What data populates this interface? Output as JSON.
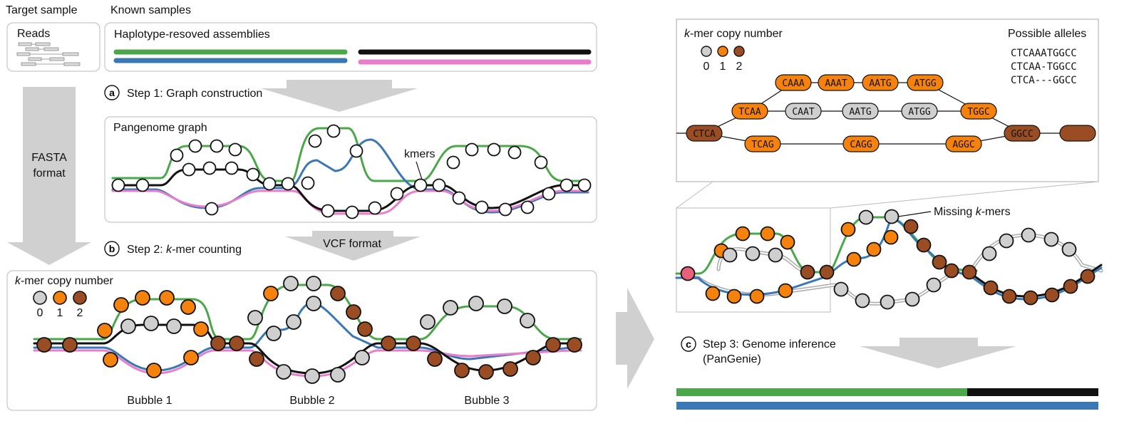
{
  "headers": {
    "target": "Target sample",
    "known": "Known samples"
  },
  "reads": {
    "label": "Reads"
  },
  "assemblies": {
    "label": "Haplotype-resoved assemblies"
  },
  "left_arrow": {
    "line1": "FASTA",
    "line2": "format"
  },
  "step_a": {
    "letter": "a",
    "text": "Step 1: Graph construction"
  },
  "pangenome": {
    "title": "Pangenome graph",
    "kmers_label": "kmers"
  },
  "step_b": {
    "letter": "b",
    "text_prefix": "Step 2: ",
    "text_italic": "k",
    "text_suffix": "-mer counting",
    "vcf": "VCF format"
  },
  "copy_panel": {
    "title_italic": "k",
    "title_rest": "-mer copy number",
    "legend": [
      "0",
      "1",
      "2"
    ],
    "bubbles": [
      "Bubble 1",
      "Bubble 2",
      "Bubble 3"
    ]
  },
  "kmer_graph": {
    "title_italic": "k",
    "title_rest": "-mer copy number",
    "legend": [
      "0",
      "1",
      "2"
    ],
    "alleles_title": "Possible alleles",
    "alleles": [
      "CTCAAATGGCC",
      "CTCAA-TGGCC",
      "CTCA---GGCC"
    ],
    "nodes": {
      "top": [
        "CAAA",
        "AAAT",
        "AATG",
        "ATGG"
      ],
      "mid_left": "TCAA",
      "mid": [
        "CAAT",
        "AATG",
        "ATGG"
      ],
      "mid_right": "TGGC",
      "start": "CTCA",
      "bottom": [
        "TCAG",
        "CAGG",
        "AGGC"
      ],
      "end": "GGCC"
    }
  },
  "zoom": {
    "missing_italic": "k",
    "missing_prefix": "Missing ",
    "missing_suffix": "-mers"
  },
  "step_c": {
    "letter": "c",
    "line1": "Step 3: Genome inference",
    "line2": "(PanGenie)"
  },
  "colors": {
    "green": "#4aa84a",
    "blue": "#3a78b5",
    "pink": "#e87dcc",
    "black": "#111111",
    "orange": "#f5820d",
    "brown": "#9a4d22",
    "grey": "#cfcfcf",
    "red": "#e8607a"
  }
}
